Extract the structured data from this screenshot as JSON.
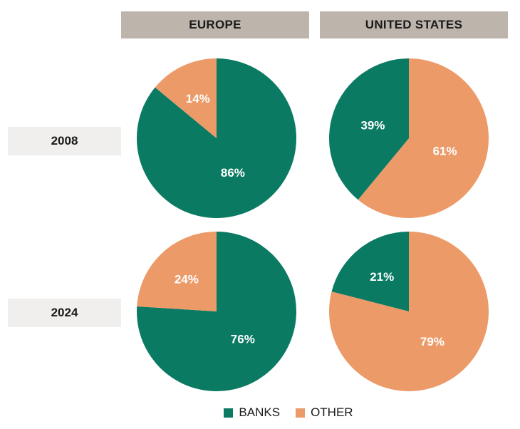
{
  "colors": {
    "banks": "#0a7a62",
    "other": "#ec9a67",
    "header_bg": "#bdb4ac",
    "row_label_bg": "#f1efed"
  },
  "columns": [
    "EUROPE",
    "UNITED STATES"
  ],
  "rows": [
    "2008",
    "2024"
  ],
  "legend": [
    {
      "label": "BANKS",
      "color": "#0a7a62"
    },
    {
      "label": "OTHER",
      "color": "#ec9a67"
    }
  ],
  "chart_data": [
    {
      "type": "pie",
      "region": "EUROPE",
      "year": "2008",
      "slices": [
        {
          "name": "BANKS",
          "value": 86,
          "label": "86%"
        },
        {
          "name": "OTHER",
          "value": 14,
          "label": "14%"
        }
      ]
    },
    {
      "type": "pie",
      "region": "UNITED STATES",
      "year": "2008",
      "slices": [
        {
          "name": "BANKS",
          "value": 39,
          "label": "39%"
        },
        {
          "name": "OTHER",
          "value": 61,
          "label": "61%"
        }
      ]
    },
    {
      "type": "pie",
      "region": "EUROPE",
      "year": "2024",
      "slices": [
        {
          "name": "BANKS",
          "value": 76,
          "label": "76%"
        },
        {
          "name": "OTHER",
          "value": 24,
          "label": "24%"
        }
      ]
    },
    {
      "type": "pie",
      "region": "UNITED STATES",
      "year": "2024",
      "slices": [
        {
          "name": "BANKS",
          "value": 21,
          "label": "21%"
        },
        {
          "name": "OTHER",
          "value": 79,
          "label": "79%"
        }
      ]
    }
  ]
}
